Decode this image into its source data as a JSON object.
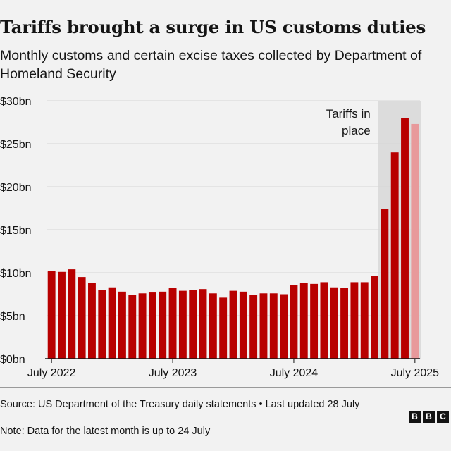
{
  "header": {
    "title": "Tariffs brought a surge in US customs duties",
    "subtitle": "Monthly customs and certain excise taxes collected by Department of Homeland Security"
  },
  "colors": {
    "bar": "#b80000",
    "bar_partial": "#e8999b",
    "shade": "#dcdcdc",
    "grid": "#d6d6d6",
    "axis": "#141414"
  },
  "chart_data": {
    "type": "bar",
    "title": "Tariffs brought a surge in US customs duties",
    "ylabel": "Monthly customs and certain excise taxes collected by Department of Homeland Security",
    "unit": "$bn",
    "ylim": [
      0,
      30
    ],
    "y_ticks": [
      0,
      5,
      10,
      15,
      20,
      25,
      30
    ],
    "y_tick_labels": [
      "$0bn",
      "$5bn",
      "$10bn",
      "$15bn",
      "$20bn",
      "$25bn",
      "$30bn"
    ],
    "x_tick_labels": [
      {
        "label": "July 2022",
        "index": 0
      },
      {
        "label": "July 2023",
        "index": 12
      },
      {
        "label": "July 2024",
        "index": 24
      },
      {
        "label": "July 2025",
        "index": 36
      }
    ],
    "categories": [
      "Jul 2022",
      "Aug 2022",
      "Sep 2022",
      "Oct 2022",
      "Nov 2022",
      "Dec 2022",
      "Jan 2023",
      "Feb 2023",
      "Mar 2023",
      "Apr 2023",
      "May 2023",
      "Jun 2023",
      "Jul 2023",
      "Aug 2023",
      "Sep 2023",
      "Oct 2023",
      "Nov 2023",
      "Dec 2023",
      "Jan 2024",
      "Feb 2024",
      "Mar 2024",
      "Apr 2024",
      "May 2024",
      "Jun 2024",
      "Jul 2024",
      "Aug 2024",
      "Sep 2024",
      "Oct 2024",
      "Nov 2024",
      "Dec 2024",
      "Jan 2025",
      "Feb 2025",
      "Mar 2025",
      "Apr 2025",
      "May 2025",
      "Jun 2025",
      "Jul 2025"
    ],
    "values": [
      10.2,
      10.1,
      10.4,
      9.5,
      8.8,
      8.0,
      8.3,
      7.8,
      7.4,
      7.6,
      7.7,
      7.8,
      8.2,
      7.9,
      8.0,
      8.1,
      7.6,
      7.1,
      7.9,
      7.8,
      7.4,
      7.6,
      7.6,
      7.5,
      8.6,
      8.8,
      8.7,
      8.9,
      8.3,
      8.2,
      8.9,
      8.9,
      9.6,
      17.4,
      24.0,
      28.0,
      27.3
    ],
    "partial_last": true,
    "shaded_region": {
      "start_index": 33,
      "end_index": 36
    },
    "annotation": "Tariffs in place"
  },
  "footer": {
    "source": "Source: US Department of the Treasury daily statements • Last updated 28 July",
    "note": "Note: Data for the latest month is up to 24 July",
    "logo": [
      "B",
      "B",
      "C"
    ]
  }
}
